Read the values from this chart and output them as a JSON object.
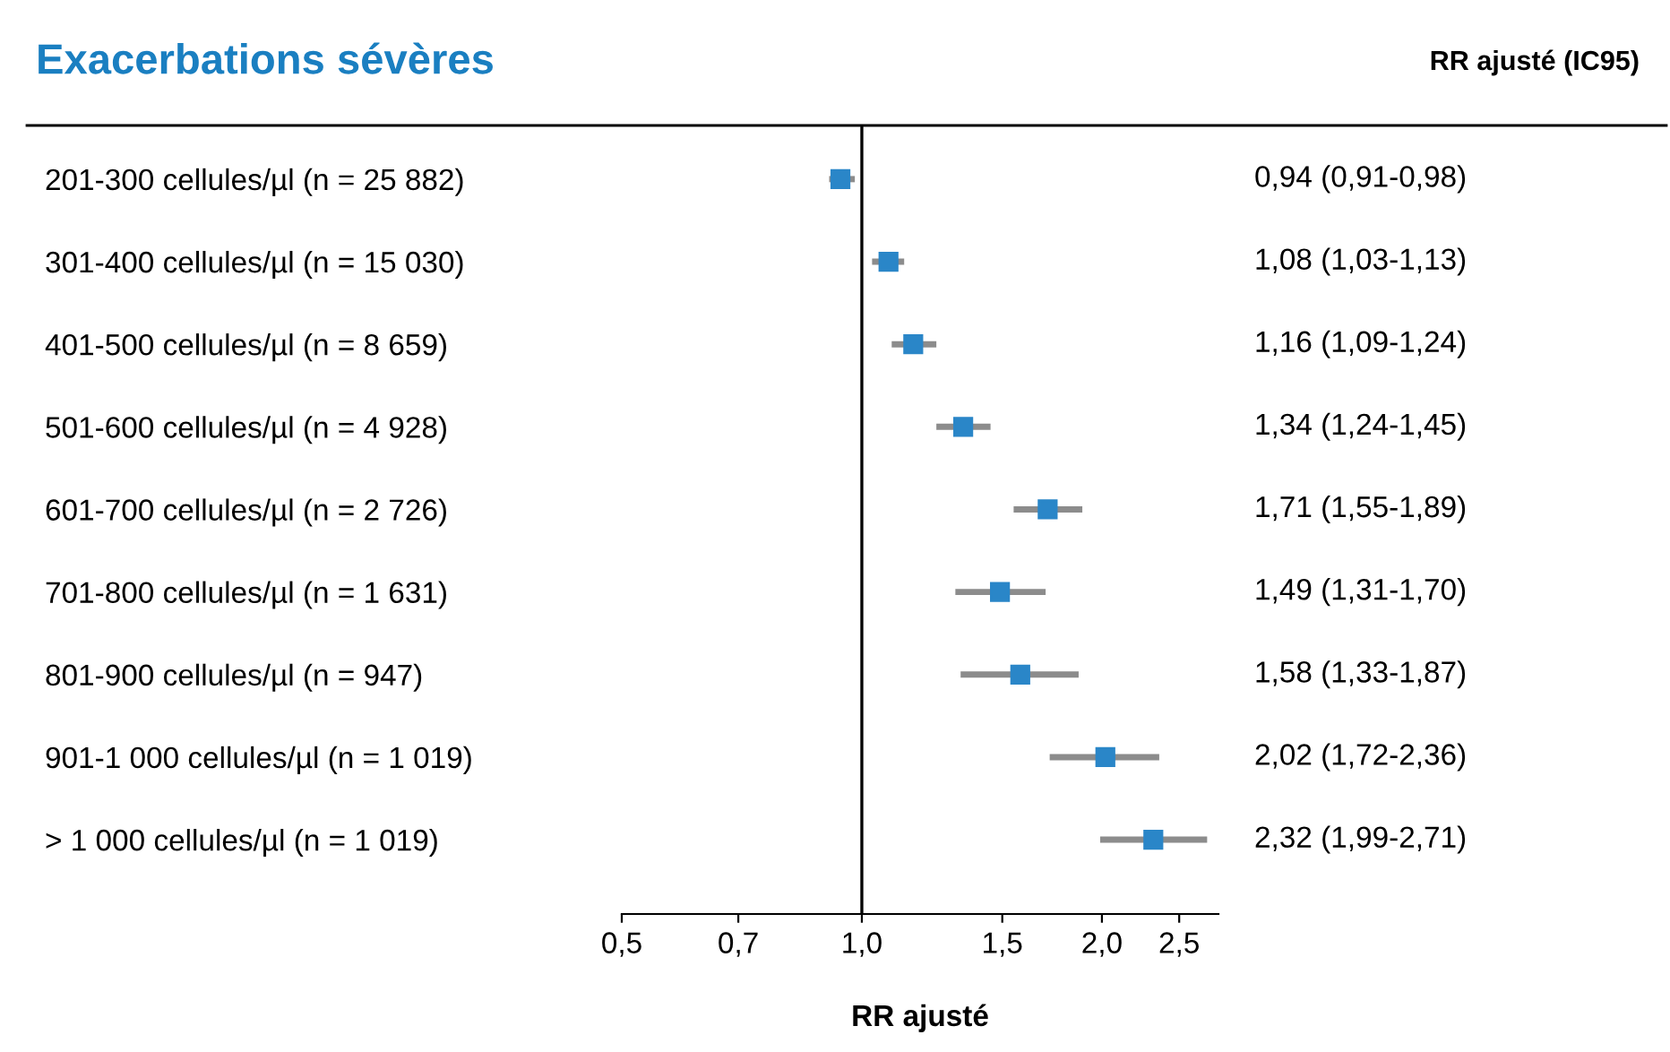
{
  "chart_data": {
    "type": "scatter",
    "orientation": "horizontal",
    "title": "Exacerbations sévères",
    "xlabel": "RR ajusté",
    "annotations": [
      "RR ajusté (IC95)"
    ],
    "categories": [
      "201-300 cellules/µl (n = 25 882)",
      "301-400 cellules/µl (n = 15 030)",
      "401-500 cellules/µl (n = 8 659)",
      "501-600 cellules/µl (n = 4 928)",
      "601-700 cellules/µl (n = 2 726)",
      "701-800 cellules/µl (n = 1 631)",
      "801-900 cellules/µl (n = 947)",
      "901-1 000 cellules/µl (n = 1 019)",
      "> 1 000 cellules/µl (n = 1 019)"
    ],
    "color": "#2a86c8",
    "values": [
      0.94,
      1.08,
      1.16,
      1.34,
      1.71,
      1.49,
      1.58,
      2.02,
      2.32
    ],
    "errors": [
      [
        0.91,
        0.98
      ],
      [
        1.03,
        1.13
      ],
      [
        1.09,
        1.24
      ],
      [
        1.24,
        1.45
      ],
      [
        1.55,
        1.89
      ],
      [
        1.31,
        1.7
      ],
      [
        1.33,
        1.87
      ],
      [
        1.72,
        2.36
      ],
      [
        1.99,
        2.71
      ]
    ],
    "value_labels": [
      "0,94 (0,91-0,98)",
      "1,08 (1,03-1,13)",
      "1,16 (1,09-1,24)",
      "1,34 (1,24-1,45)",
      "1,71 (1,55-1,89)",
      "1,49 (1,31-1,70)",
      "1,58 (1,33-1,87)",
      "2,02 (1,72-2,36)",
      "2,32 (1,99-2,71)"
    ],
    "log": "x",
    "xlim": [
      0.5,
      2.8
    ],
    "xticks": [
      {
        "value": 0.5,
        "label": "0,5"
      },
      {
        "value": 0.7,
        "label": "0,7"
      },
      {
        "value": 1.0,
        "label": "1,0"
      },
      {
        "value": 1.5,
        "label": "1,5"
      },
      {
        "value": 2.0,
        "label": "2,0"
      },
      {
        "value": 2.5,
        "label": "2,5"
      }
    ],
    "ref_lines": [
      {
        "axis": "x",
        "value": 1.0,
        "color": "#000000"
      }
    ],
    "marker": "square",
    "grid": false,
    "legend": false
  }
}
